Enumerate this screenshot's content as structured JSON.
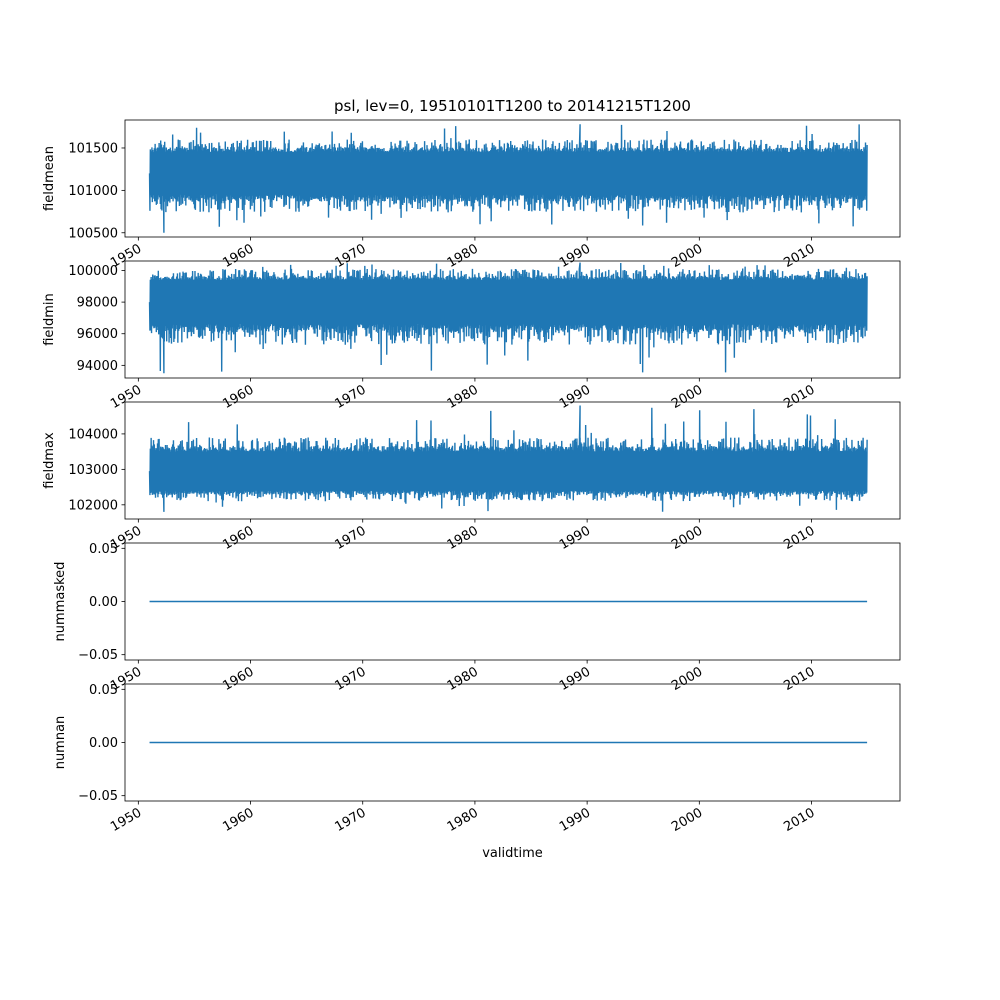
{
  "title": "psl, lev=0, 19510101T1200 to 20141215T1200",
  "xlabel": "validtime",
  "colors": {
    "line": "#1f77b4",
    "axis": "#000000",
    "background": "#ffffff"
  },
  "chart_data": [
    {
      "type": "line",
      "ylabel": "fieldmean",
      "xlim": [
        "1948-10-24",
        "2017-11-20"
      ],
      "ylim": [
        100450,
        101830
      ],
      "yticks": [
        100500,
        101000,
        101500
      ],
      "xtick_labels": [
        "1950",
        "1960",
        "1970",
        "1980",
        "1990",
        "2000",
        "2010"
      ],
      "xtick_dates": [
        "1950-01-01",
        "1960-01-01",
        "1970-01-01",
        "1980-01-01",
        "1990-01-01",
        "2000-01-01",
        "2010-01-01"
      ],
      "x_range": [
        "1951-01-01",
        "2014-12-15"
      ],
      "series": [
        {
          "envelope_high": 101600,
          "envelope_low": 100740,
          "typical_high": 101450,
          "typical_low": 100950,
          "extreme_high": 101780,
          "extreme_low": 100500
        }
      ]
    },
    {
      "type": "line",
      "ylabel": "fieldmin",
      "xlim": [
        "1948-10-24",
        "2017-11-20"
      ],
      "ylim": [
        93200,
        100600
      ],
      "yticks": [
        94000,
        96000,
        98000,
        100000
      ],
      "xtick_labels": [
        "1950",
        "1960",
        "1970",
        "1980",
        "1990",
        "2000",
        "2010"
      ],
      "xtick_dates": [
        "1950-01-01",
        "1960-01-01",
        "1970-01-01",
        "1980-01-01",
        "1990-01-01",
        "2000-01-01",
        "2010-01-01"
      ],
      "x_range": [
        "1951-01-01",
        "2014-12-15"
      ],
      "series": [
        {
          "envelope_high": 100100,
          "envelope_low": 95300,
          "typical_high": 99400,
          "typical_low": 96600,
          "extreme_high": 100500,
          "extreme_low": 93500
        }
      ]
    },
    {
      "type": "line",
      "ylabel": "fieldmax",
      "xlim": [
        "1948-10-24",
        "2017-11-20"
      ],
      "ylim": [
        101600,
        104900
      ],
      "yticks": [
        102000,
        103000,
        104000
      ],
      "xtick_labels": [
        "1950",
        "1960",
        "1970",
        "1980",
        "1990",
        "2000",
        "2010"
      ],
      "xtick_dates": [
        "1950-01-01",
        "1960-01-01",
        "1970-01-01",
        "1980-01-01",
        "1990-01-01",
        "2000-01-01",
        "2010-01-01"
      ],
      "x_range": [
        "1951-01-01",
        "2014-12-15"
      ],
      "series": [
        {
          "envelope_high": 103900,
          "envelope_low": 102100,
          "typical_high": 103500,
          "typical_low": 102400,
          "extreme_high": 104800,
          "extreme_low": 101800
        }
      ]
    },
    {
      "type": "line",
      "ylabel": "nummasked",
      "xlim": [
        "1948-10-24",
        "2017-11-20"
      ],
      "ylim": [
        -0.055,
        0.055
      ],
      "yticks": [
        -0.05,
        0.0,
        0.05
      ],
      "ytick_labels": [
        "−0.05",
        "0.00",
        "0.05"
      ],
      "xtick_labels": [
        "1950",
        "1960",
        "1970",
        "1980",
        "1990",
        "2000",
        "2010"
      ],
      "xtick_dates": [
        "1950-01-01",
        "1960-01-01",
        "1970-01-01",
        "1980-01-01",
        "1990-01-01",
        "2000-01-01",
        "2010-01-01"
      ],
      "x_range": [
        "1951-01-01",
        "2014-12-15"
      ],
      "series": [
        {
          "constant": 0.0
        }
      ]
    },
    {
      "type": "line",
      "ylabel": "numnan",
      "xlim": [
        "1948-10-24",
        "2017-11-20"
      ],
      "ylim": [
        -0.055,
        0.055
      ],
      "yticks": [
        -0.05,
        0.0,
        0.05
      ],
      "ytick_labels": [
        "−0.05",
        "0.00",
        "0.05"
      ],
      "xtick_labels": [
        "1950",
        "1960",
        "1970",
        "1980",
        "1990",
        "2000",
        "2010"
      ],
      "xtick_dates": [
        "1950-01-01",
        "1960-01-01",
        "1970-01-01",
        "1980-01-01",
        "1990-01-01",
        "2000-01-01",
        "2010-01-01"
      ],
      "x_range": [
        "1951-01-01",
        "2014-12-15"
      ],
      "series": [
        {
          "constant": 0.0
        }
      ]
    }
  ]
}
